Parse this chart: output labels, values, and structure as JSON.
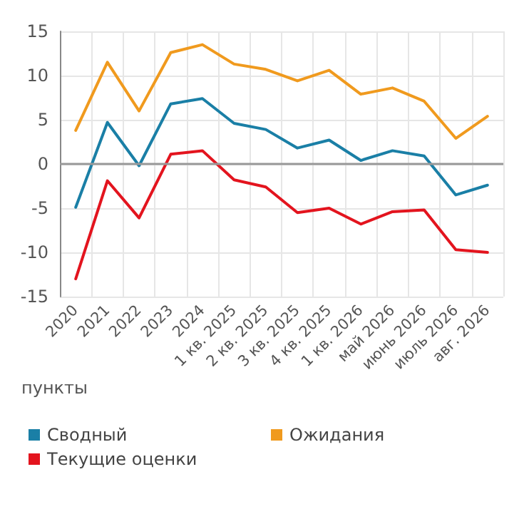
{
  "chart_data": {
    "type": "line",
    "categories": [
      "2020",
      "2021",
      "2022",
      "2023",
      "2024",
      "1 кв. 2025",
      "2 кв. 2025",
      "3 кв. 2025",
      "4 кв. 2025",
      "1 кв. 2026",
      "май 2026",
      "июнь 2026",
      "июль 2026",
      "авг. 2026"
    ],
    "series": [
      {
        "name": "Сводный",
        "color": "#1a7fa6",
        "values": [
          -4.9,
          4.7,
          -0.2,
          6.8,
          7.4,
          4.6,
          3.9,
          1.8,
          2.7,
          0.4,
          1.5,
          0.9,
          -3.5,
          -2.4
        ]
      },
      {
        "name": "Ожидания",
        "color": "#f09a1e",
        "values": [
          3.8,
          11.5,
          6.0,
          12.6,
          13.5,
          11.3,
          10.7,
          9.4,
          10.6,
          7.9,
          8.6,
          7.1,
          2.9,
          5.4
        ]
      },
      {
        "name": "Текущие оценки",
        "color": "#e3141e",
        "values": [
          -13.0,
          -1.9,
          -6.1,
          1.1,
          1.5,
          -1.8,
          -2.6,
          -5.5,
          -5.0,
          -6.8,
          -5.4,
          -5.2,
          -9.7,
          -10.0
        ]
      }
    ],
    "ylim": [
      -15,
      15
    ],
    "yticks": [
      -15,
      -10,
      -5,
      0,
      5,
      10,
      15
    ],
    "ref_lines": [
      {
        "axis": "y",
        "value": 0,
        "color": "#999999"
      }
    ],
    "annotations": [
      "пункты"
    ],
    "grid": true,
    "legend": "bottom",
    "marker": "none",
    "line_style": "solid"
  }
}
